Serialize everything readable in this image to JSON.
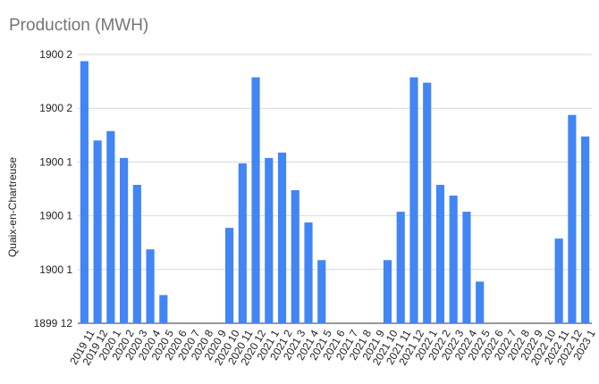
{
  "chart_data": {
    "type": "bar",
    "title": "Production (MWH)",
    "ylabel": "Quaix-en-Chartreuse",
    "xlabel": "",
    "ylim": [
      0,
      100
    ],
    "y_ticks": [
      {
        "value": 0,
        "label": "1899 12"
      },
      {
        "value": 20,
        "label": "1900 1"
      },
      {
        "value": 40,
        "label": "1900 1"
      },
      {
        "value": 60,
        "label": "1900 1"
      },
      {
        "value": 80,
        "label": "1900 2"
      },
      {
        "value": 100,
        "label": "1900 2"
      }
    ],
    "grid": true,
    "legend": "none",
    "bar_color": "#4285f4",
    "categories": [
      "2019 11",
      "2019 12",
      "2020 1",
      "2020 2",
      "2020 3",
      "2020 4",
      "2020 5",
      "2020 6",
      "2020 7",
      "2020 8",
      "2020 9",
      "2020 10",
      "2020 11",
      "2020 12",
      "2021 1",
      "2021 2",
      "2021 3",
      "2021 4",
      "2021 5",
      "2021 6",
      "2021 7",
      "2021 8",
      "2021 9",
      "2021 10",
      "2021 11",
      "2021 12",
      "2022 1",
      "2022 2",
      "2022 3",
      "2022 4",
      "2022 5",
      "2022 6",
      "2022 7",
      "2022 8",
      "2022 9",
      "2022 10",
      "2022 11",
      "2022 12",
      "2023 1"
    ],
    "values": [
      97.5,
      68,
      71.5,
      61.5,
      51.5,
      27.5,
      10.5,
      0,
      0,
      0,
      0,
      35.5,
      59.5,
      91.5,
      61.5,
      63.5,
      49.5,
      37.5,
      23.5,
      0,
      0,
      0,
      0,
      23.5,
      41.5,
      91.5,
      89.5,
      51.5,
      47.5,
      41.5,
      15.5,
      0,
      0,
      0,
      0,
      0,
      31.5,
      77.5,
      69.5
    ]
  }
}
